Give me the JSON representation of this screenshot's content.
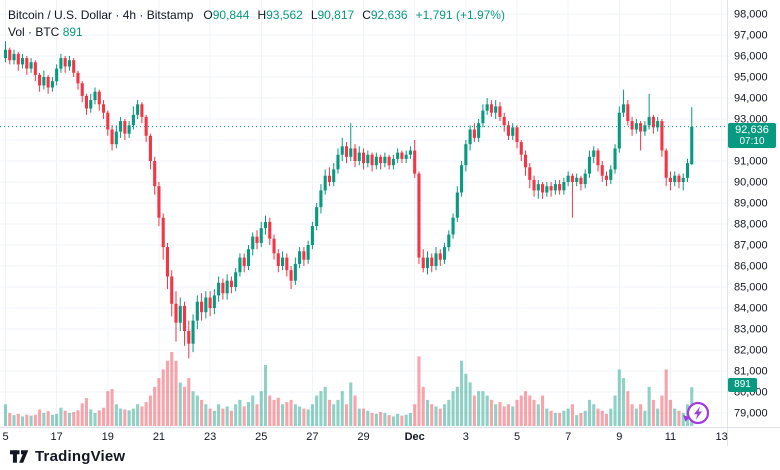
{
  "legend": {
    "title": "Bitcoin / U.S. Dollar · 4h · Bitstamp",
    "ohlc": [
      {
        "label": "O",
        "value": "90,844"
      },
      {
        "label": "H",
        "value": "93,562"
      },
      {
        "label": "L",
        "value": "90,817"
      },
      {
        "label": "C",
        "value": "92,636"
      }
    ],
    "change": "+1,791 (+1.97%)",
    "volume_label": "Vol · BTC",
    "volume_value": "891"
  },
  "price_axis": {
    "badge": {
      "price": "92,636",
      "countdown": "07:10"
    },
    "volume_badge": "891"
  },
  "logo": {
    "text": "TradingView"
  },
  "icons": {
    "marker": "lightning-bolt-icon"
  },
  "colors": {
    "up": "#089981",
    "down": "#f23645",
    "volume_up": "rgba(8,153,129,0.45)",
    "volume_down": "rgba(242,54,69,0.45)",
    "grid": "#f0f3fa",
    "axis_line": "#e0e3eb",
    "axis_text": "#131722",
    "badge_bg": "#089981",
    "price_line": "#089981",
    "marker_purple": "#a13be0"
  },
  "chart_data": {
    "type": "candlestick",
    "symbol": "Bitcoin / U.S. Dollar",
    "interval": "4h",
    "exchange": "Bitstamp",
    "legend_last": {
      "open": 90844,
      "high": 93562,
      "low": 90817,
      "close": 92636,
      "change_abs": 1791,
      "change_pct": 1.97,
      "volume_btc": 891,
      "countdown": "07:10"
    },
    "y_axis": {
      "min": 79000,
      "max": 98000,
      "step": 1000,
      "tick_labels": [
        "98,000",
        "97,000",
        "96,000",
        "95,000",
        "94,000",
        "93,000",
        "92,000",
        "91,000",
        "90,000",
        "89,000",
        "88,000",
        "87,000",
        "86,000",
        "85,000",
        "84,000",
        "83,000",
        "82,000",
        "81,000",
        "80,000",
        "79,000"
      ]
    },
    "x_ticks": [
      {
        "label": "5",
        "index": 0
      },
      {
        "label": "17",
        "index": 12
      },
      {
        "label": "19",
        "index": 24
      },
      {
        "label": "21",
        "index": 36
      },
      {
        "label": "23",
        "index": 48
      },
      {
        "label": "25",
        "index": 60
      },
      {
        "label": "27",
        "index": 72
      },
      {
        "label": "29",
        "index": 84
      },
      {
        "label": "Dec",
        "index": 96,
        "bold": true
      },
      {
        "label": "3",
        "index": 108
      },
      {
        "label": "5",
        "index": 120
      },
      {
        "label": "7",
        "index": 132
      },
      {
        "label": "9",
        "index": 144
      },
      {
        "label": "11",
        "index": 156
      },
      {
        "label": "13",
        "index": 168
      }
    ],
    "volume_scale_max": 1700,
    "candles": [
      [
        95900,
        96700,
        95700,
        96300,
        500
      ],
      [
        96300,
        96400,
        95600,
        95800,
        300
      ],
      [
        95800,
        96300,
        95600,
        96100,
        250
      ],
      [
        96100,
        96200,
        95300,
        95600,
        280
      ],
      [
        95600,
        96100,
        95400,
        95900,
        220
      ],
      [
        95900,
        96000,
        95100,
        95400,
        260
      ],
      [
        95400,
        95900,
        95200,
        95700,
        240
      ],
      [
        95700,
        95800,
        94800,
        95100,
        260
      ],
      [
        95100,
        95200,
        94300,
        94600,
        380
      ],
      [
        94600,
        95300,
        94400,
        95000,
        300
      ],
      [
        95000,
        95100,
        94200,
        94500,
        340
      ],
      [
        94500,
        95000,
        94300,
        94800,
        260
      ],
      [
        94800,
        95600,
        94600,
        95400,
        280
      ],
      [
        95400,
        96100,
        95200,
        95900,
        420
      ],
      [
        95900,
        96000,
        95200,
        95500,
        350
      ],
      [
        95500,
        96000,
        95300,
        95800,
        300
      ],
      [
        95800,
        95900,
        95000,
        95200,
        320
      ],
      [
        95200,
        95300,
        94400,
        94700,
        360
      ],
      [
        94700,
        94800,
        93800,
        94100,
        520
      ],
      [
        94100,
        94200,
        93200,
        93500,
        640
      ],
      [
        93500,
        94200,
        93300,
        93900,
        380
      ],
      [
        93900,
        94500,
        93700,
        94300,
        300
      ],
      [
        94300,
        94400,
        93400,
        93700,
        360
      ],
      [
        93700,
        93900,
        93000,
        93300,
        420
      ],
      [
        93300,
        93400,
        92200,
        92500,
        800
      ],
      [
        92500,
        92700,
        91500,
        91800,
        850
      ],
      [
        91800,
        92700,
        91600,
        92400,
        500
      ],
      [
        92400,
        93100,
        92100,
        92900,
        400
      ],
      [
        92900,
        93000,
        92000,
        92300,
        380
      ],
      [
        92300,
        92900,
        92100,
        92700,
        360
      ],
      [
        92700,
        93600,
        92500,
        93200,
        400
      ],
      [
        93200,
        93900,
        93000,
        93700,
        500
      ],
      [
        93700,
        93800,
        92800,
        93100,
        450
      ],
      [
        93100,
        93200,
        91900,
        92200,
        550
      ],
      [
        92200,
        92300,
        90600,
        91000,
        700
      ],
      [
        91000,
        91200,
        89400,
        89800,
        900
      ],
      [
        89800,
        90000,
        87900,
        88300,
        1100
      ],
      [
        88300,
        88500,
        86300,
        86900,
        1300
      ],
      [
        86900,
        87100,
        84900,
        85500,
        1500
      ],
      [
        85500,
        85800,
        83600,
        84200,
        1700
      ],
      [
        84200,
        84800,
        82400,
        83300,
        1500
      ],
      [
        83300,
        84500,
        82900,
        84100,
        1000
      ],
      [
        84100,
        84300,
        82200,
        82900,
        900
      ],
      [
        82900,
        83400,
        81600,
        82300,
        1100
      ],
      [
        82300,
        83700,
        81900,
        83400,
        800
      ],
      [
        83400,
        84600,
        83000,
        84300,
        700
      ],
      [
        84300,
        84700,
        83400,
        83800,
        600
      ],
      [
        83800,
        84800,
        83500,
        84500,
        500
      ],
      [
        84500,
        84800,
        83600,
        84000,
        400
      ],
      [
        84000,
        84900,
        83700,
        84600,
        350
      ],
      [
        84600,
        85500,
        84300,
        85200,
        500
      ],
      [
        85200,
        85400,
        84400,
        84700,
        400
      ],
      [
        84700,
        85600,
        84400,
        85300,
        450
      ],
      [
        85300,
        85500,
        84700,
        85000,
        350
      ],
      [
        85000,
        85900,
        84800,
        85700,
        500
      ],
      [
        85700,
        86600,
        85500,
        86400,
        600
      ],
      [
        86400,
        86600,
        85700,
        86000,
        450
      ],
      [
        86000,
        87000,
        85800,
        86800,
        550
      ],
      [
        86800,
        87600,
        86500,
        87400,
        700
      ],
      [
        87400,
        87700,
        86800,
        87100,
        500
      ],
      [
        87100,
        88100,
        86900,
        87800,
        800
      ],
      [
        87800,
        88400,
        87500,
        88100,
        1400
      ],
      [
        88100,
        88300,
        87000,
        87300,
        700
      ],
      [
        87300,
        87500,
        86300,
        86600,
        600
      ],
      [
        86600,
        86800,
        85700,
        86000,
        650
      ],
      [
        86000,
        86700,
        85800,
        86400,
        500
      ],
      [
        86400,
        86600,
        85500,
        85800,
        550
      ],
      [
        85800,
        86000,
        84900,
        85300,
        600
      ],
      [
        85300,
        86400,
        85100,
        86100,
        500
      ],
      [
        86100,
        86900,
        85900,
        86700,
        450
      ],
      [
        86700,
        86900,
        86000,
        86300,
        400
      ],
      [
        86300,
        87200,
        86100,
        87000,
        380
      ],
      [
        87000,
        88100,
        86800,
        87900,
        500
      ],
      [
        87900,
        89000,
        87700,
        88800,
        700
      ],
      [
        88800,
        89900,
        88500,
        89600,
        800
      ],
      [
        89600,
        90600,
        89400,
        90300,
        900
      ],
      [
        90300,
        90700,
        89800,
        90000,
        600
      ],
      [
        90000,
        90900,
        89800,
        90600,
        500
      ],
      [
        90600,
        91600,
        90400,
        91300,
        600
      ],
      [
        91300,
        92100,
        91000,
        91700,
        800
      ],
      [
        91700,
        91900,
        90900,
        91200,
        500
      ],
      [
        91200,
        92800,
        91000,
        91600,
        1000
      ],
      [
        91600,
        91800,
        90700,
        91000,
        700
      ],
      [
        91000,
        91700,
        90800,
        91400,
        400
      ],
      [
        91400,
        91600,
        90600,
        90900,
        400
      ],
      [
        90900,
        91500,
        90700,
        91300,
        350
      ],
      [
        91300,
        91400,
        90500,
        90800,
        300
      ],
      [
        90800,
        91400,
        90600,
        91200,
        280
      ],
      [
        91200,
        91300,
        90600,
        90900,
        320
      ],
      [
        90900,
        91400,
        90700,
        91200,
        300
      ],
      [
        91200,
        91300,
        90600,
        90800,
        250
      ],
      [
        90800,
        91300,
        90600,
        91100,
        220
      ],
      [
        91100,
        91600,
        90900,
        91400,
        280
      ],
      [
        91400,
        91500,
        90900,
        91100,
        240
      ],
      [
        91100,
        91500,
        90900,
        91300,
        260
      ],
      [
        91300,
        91700,
        91100,
        91500,
        300
      ],
      [
        91500,
        92000,
        90200,
        90400,
        500
      ],
      [
        90400,
        90500,
        86100,
        86400,
        1600
      ],
      [
        86400,
        86800,
        85700,
        85900,
        900
      ],
      [
        85900,
        86700,
        85600,
        86400,
        600
      ],
      [
        86400,
        86600,
        85700,
        86000,
        500
      ],
      [
        86000,
        86900,
        85800,
        86600,
        450
      ],
      [
        86600,
        86800,
        86000,
        86300,
        400
      ],
      [
        86300,
        87100,
        86100,
        86900,
        500
      ],
      [
        86900,
        87700,
        86700,
        87500,
        600
      ],
      [
        87500,
        88500,
        87300,
        88300,
        800
      ],
      [
        88300,
        89800,
        88100,
        89500,
        900
      ],
      [
        89500,
        91000,
        89300,
        90800,
        1500
      ],
      [
        90800,
        92000,
        90500,
        91800,
        1200
      ],
      [
        91800,
        92700,
        91500,
        92500,
        1000
      ],
      [
        92500,
        92800,
        91900,
        92100,
        700
      ],
      [
        92100,
        93000,
        91900,
        92800,
        800
      ],
      [
        92800,
        93700,
        92600,
        93400,
        800
      ],
      [
        93400,
        94000,
        93200,
        93700,
        700
      ],
      [
        93700,
        93900,
        93100,
        93300,
        600
      ],
      [
        93300,
        93900,
        93000,
        93600,
        500
      ],
      [
        93600,
        93800,
        92900,
        93100,
        550
      ],
      [
        93100,
        93300,
        92400,
        92700,
        450
      ],
      [
        92700,
        92900,
        92000,
        92200,
        500
      ],
      [
        92200,
        92800,
        92000,
        92600,
        450
      ],
      [
        92600,
        92700,
        91600,
        91900,
        600
      ],
      [
        91900,
        92000,
        91000,
        91300,
        700
      ],
      [
        91300,
        91500,
        90300,
        90700,
        800
      ],
      [
        90700,
        90900,
        89700,
        90100,
        700
      ],
      [
        90100,
        90300,
        89300,
        89600,
        600
      ],
      [
        89600,
        90100,
        89200,
        89900,
        500
      ],
      [
        89900,
        90000,
        89200,
        89500,
        700
      ],
      [
        89500,
        90000,
        89300,
        89800,
        400
      ],
      [
        89800,
        90000,
        89300,
        89600,
        350
      ],
      [
        89600,
        90100,
        89400,
        89900,
        300
      ],
      [
        89900,
        90100,
        89400,
        89600,
        300
      ],
      [
        89600,
        90200,
        89400,
        90000,
        350
      ],
      [
        90000,
        90500,
        89800,
        90300,
        400
      ],
      [
        90300,
        90400,
        88300,
        90000,
        500
      ],
      [
        90000,
        90400,
        89800,
        90200,
        250
      ],
      [
        90200,
        90300,
        89600,
        89900,
        300
      ],
      [
        89900,
        90600,
        89700,
        90400,
        350
      ],
      [
        90400,
        91500,
        90200,
        91200,
        600
      ],
      [
        91200,
        91700,
        90900,
        91500,
        500
      ],
      [
        91500,
        91600,
        90500,
        90800,
        400
      ],
      [
        90800,
        91000,
        90000,
        90300,
        350
      ],
      [
        90300,
        90500,
        89800,
        90100,
        280
      ],
      [
        90100,
        90800,
        89900,
        90600,
        400
      ],
      [
        90600,
        91800,
        90400,
        91600,
        700
      ],
      [
        91600,
        93600,
        91400,
        93300,
        1300
      ],
      [
        93300,
        94400,
        93100,
        93700,
        1100
      ],
      [
        93700,
        93900,
        92700,
        92900,
        800
      ],
      [
        92900,
        93100,
        92200,
        92500,
        500
      ],
      [
        92500,
        93000,
        92300,
        92800,
        400
      ],
      [
        92800,
        92900,
        91500,
        92400,
        500
      ],
      [
        92400,
        92900,
        92200,
        92700,
        350
      ],
      [
        92700,
        94200,
        92500,
        93100,
        900
      ],
      [
        93100,
        93200,
        92300,
        92600,
        600
      ],
      [
        92600,
        93100,
        92400,
        92900,
        400
      ],
      [
        92900,
        93000,
        91200,
        91500,
        700
      ],
      [
        91500,
        91600,
        89800,
        90200,
        1300
      ],
      [
        90200,
        90500,
        89600,
        90000,
        600
      ],
      [
        90000,
        90500,
        89800,
        90300,
        400
      ],
      [
        90300,
        90400,
        89700,
        90000,
        350
      ],
      [
        90000,
        90400,
        89600,
        90200,
        300
      ],
      [
        90200,
        91100,
        90000,
        90900,
        500
      ],
      [
        90844,
        93562,
        90817,
        92636,
        891
      ]
    ]
  }
}
